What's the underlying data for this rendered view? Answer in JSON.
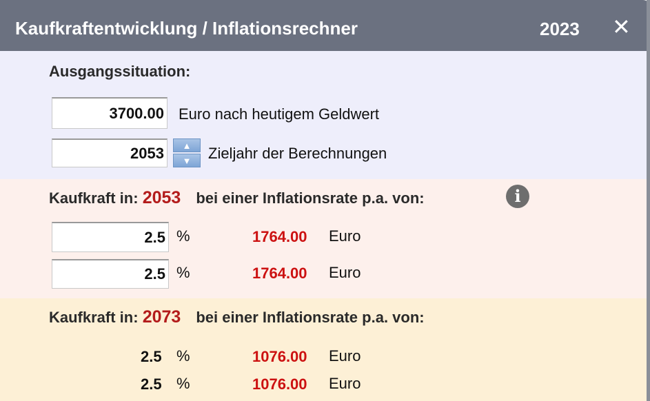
{
  "header": {
    "title": "Kaufkraftentwicklung / Inflationsrechner",
    "year": "2023",
    "close": "✕"
  },
  "start": {
    "heading": "Ausgangssituation:",
    "amount": "3700.00",
    "amount_label": "Euro nach heutigem Geldwert",
    "target_year": "2053",
    "target_year_label": "Zieljahr der Berechnungen",
    "spin_up": "▲",
    "spin_down": "▼"
  },
  "section1": {
    "prefix": "Kaufkraft in:",
    "year": "2053",
    "suffix": "bei einer Inflationsrate p.a. von:",
    "info_icon": "i",
    "rows": [
      {
        "rate": "2.5",
        "unit": "%",
        "value": "1764.00",
        "currency": "Euro"
      },
      {
        "rate": "2.5",
        "unit": "%",
        "value": "1764.00",
        "currency": "Euro"
      }
    ]
  },
  "section2": {
    "prefix": "Kaufkraft in:",
    "year": "2073",
    "suffix": "bei einer Inflationsrate p.a. von:",
    "rows": [
      {
        "rate": "2.5",
        "unit": "%",
        "value": "1076.00",
        "currency": "Euro"
      },
      {
        "rate": "2.5",
        "unit": "%",
        "value": "1076.00",
        "currency": "Euro"
      }
    ]
  },
  "colors": {
    "header": "#6b7180",
    "accent_red": "#cc1111",
    "year_red": "#b31b1b"
  }
}
